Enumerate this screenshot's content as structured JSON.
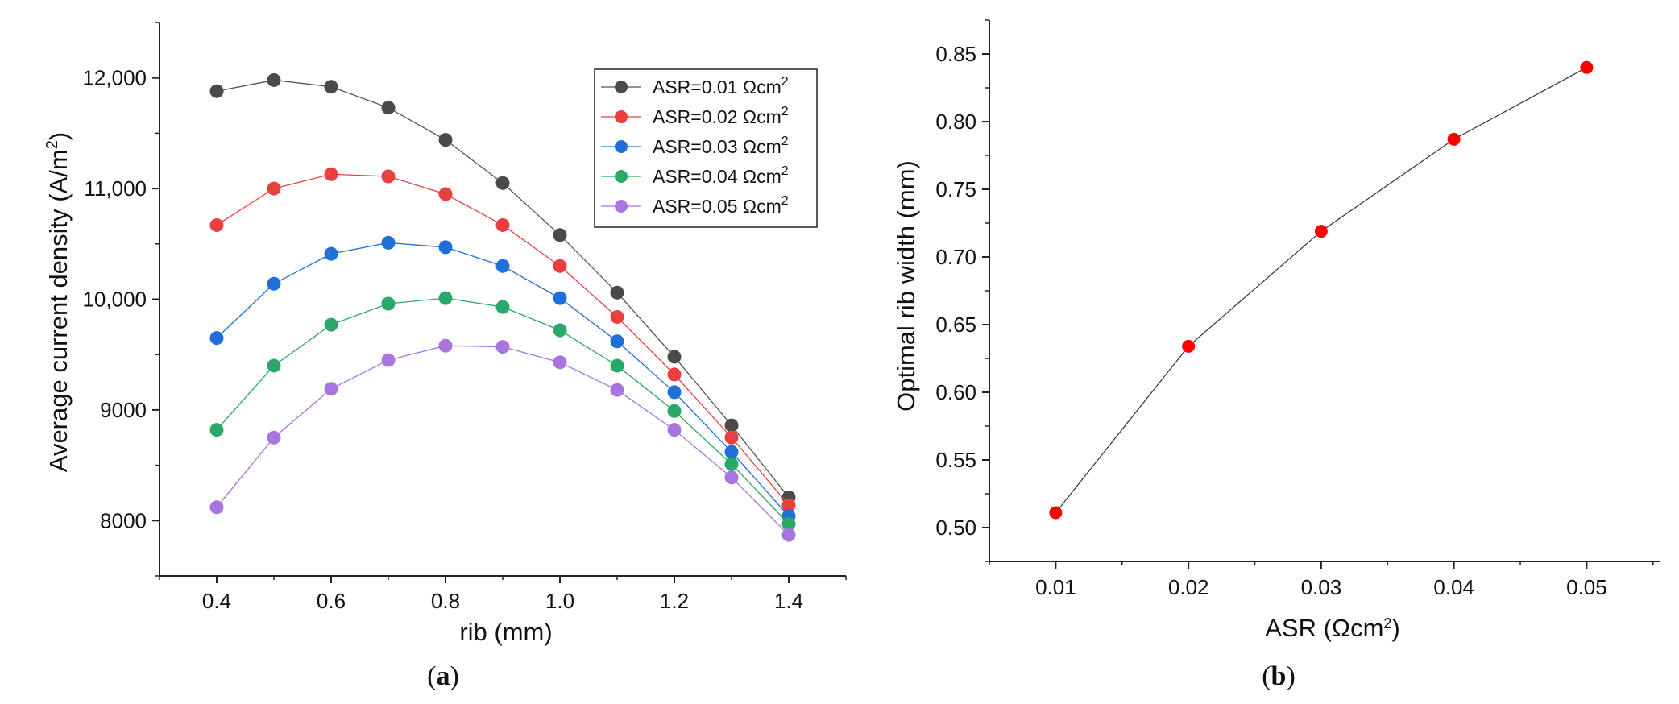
{
  "chart_data": [
    {
      "type": "line",
      "panel_label": "a",
      "xlabel": "rib (mm)",
      "ylabel_prefix": "Average current density (A/m",
      "ylabel_sup": "2",
      "ylabel_suffix": ")",
      "xlim": [
        0.3,
        1.5
      ],
      "ylim": [
        7500,
        12500
      ],
      "x_ticks": [
        0.4,
        0.6,
        0.8,
        1.0,
        1.2,
        1.4
      ],
      "x_tick_labels": [
        "0.4",
        "0.6",
        "0.8",
        "1.0",
        "1.2",
        "1.4"
      ],
      "y_ticks": [
        8000,
        9000,
        10000,
        11000,
        12000
      ],
      "y_tick_labels": [
        "8000",
        "9000",
        "10,000",
        "11,000",
        "12,000"
      ],
      "legend_position": "top-right",
      "x": [
        0.4,
        0.5,
        0.6,
        0.7,
        0.8,
        0.9,
        1.0,
        1.1,
        1.2,
        1.3,
        1.4
      ],
      "series": [
        {
          "name": "ASR=0.01 Ωcm",
          "sup": "2",
          "color": "#4a4a4a",
          "line_color": "#555555",
          "values": [
            11880,
            11980,
            11920,
            11730,
            11440,
            11050,
            10580,
            10060,
            9480,
            8860,
            8210
          ]
        },
        {
          "name": "ASR=0.02 Ωcm",
          "sup": "2",
          "color": "#e8403f",
          "line_color": "#e8403f",
          "values": [
            10670,
            11000,
            11130,
            11110,
            10950,
            10670,
            10300,
            9840,
            9320,
            8750,
            8140
          ]
        },
        {
          "name": "ASR=0.03 Ωcm",
          "sup": "2",
          "color": "#1f6fd6",
          "line_color": "#1f6fd6",
          "values": [
            9650,
            10140,
            10410,
            10510,
            10470,
            10300,
            10010,
            9620,
            9160,
            8620,
            8040
          ]
        },
        {
          "name": "ASR=0.04 Ωcm",
          "sup": "2",
          "color": "#2aa86a",
          "line_color": "#2aa86a",
          "values": [
            8820,
            9400,
            9770,
            9960,
            10010,
            9930,
            9720,
            9400,
            8990,
            8510,
            7970
          ]
        },
        {
          "name": "ASR=0.05 Ωcm",
          "sup": "2",
          "color": "#a874dd",
          "line_color": "#a874dd",
          "values": [
            8120,
            8750,
            9190,
            9450,
            9580,
            9570,
            9430,
            9180,
            8820,
            8390,
            7870
          ]
        }
      ]
    },
    {
      "type": "line",
      "panel_label": "b",
      "xlabel_prefix": "ASR (Ωcm",
      "xlabel_sup": "2",
      "xlabel_suffix": ")",
      "ylabel": "Optimal rib width (mm)",
      "xlim": [
        0.005,
        0.0555
      ],
      "ylim": [
        0.475,
        0.875
      ],
      "x_ticks": [
        0.01,
        0.02,
        0.03,
        0.04,
        0.05
      ],
      "x_tick_labels": [
        "0.01",
        "0.02",
        "0.03",
        "0.04",
        "0.05"
      ],
      "y_ticks": [
        0.5,
        0.55,
        0.6,
        0.65,
        0.7,
        0.75,
        0.8,
        0.85
      ],
      "y_tick_labels": [
        "0.50",
        "0.55",
        "0.60",
        "0.65",
        "0.70",
        "0.75",
        "0.80",
        "0.85"
      ],
      "series": [
        {
          "name": "Optimal rib width",
          "color": "#ff0000",
          "line_color": "#333333",
          "x": [
            0.01,
            0.02,
            0.03,
            0.04,
            0.05
          ],
          "values": [
            0.511,
            0.634,
            0.719,
            0.787,
            0.84
          ]
        }
      ]
    }
  ]
}
